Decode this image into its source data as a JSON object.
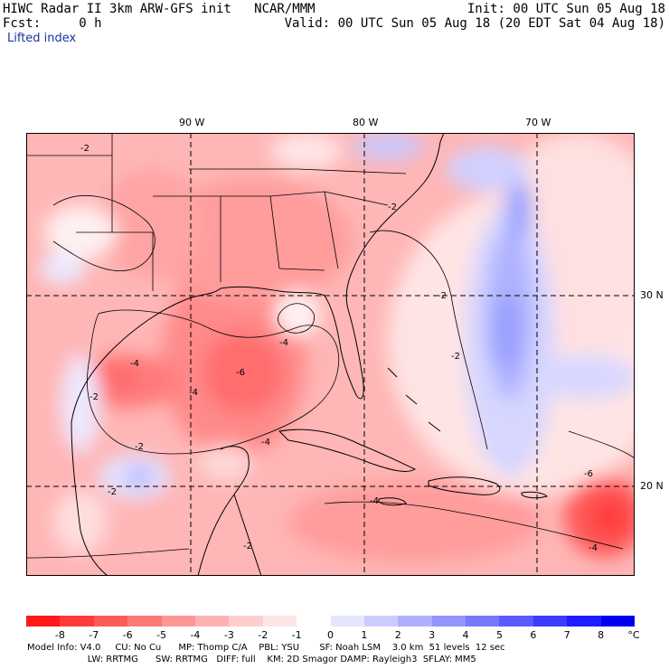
{
  "header": {
    "title": "HIWC Radar II 3km ARW-GFS init   NCAR/MMM",
    "forecast": "Fcst:     0 h",
    "init": "Init: 00 UTC Sun 05 Aug 18",
    "valid": "Valid: 00 UTC Sun 05 Aug 18 (20 EDT Sat 04 Aug 18)",
    "field": "Lifted index"
  },
  "map": {
    "lon_labels": [
      "90 W",
      "80 W",
      "70 W"
    ],
    "lat_labels": [
      "30 N",
      "20 N"
    ],
    "contour_label": "-2"
  },
  "colorbar": {
    "colors": [
      "#ff1a1a",
      "#ff3a3a",
      "#ff5a5a",
      "#ff7878",
      "#ff9696",
      "#ffb2b2",
      "#ffcece",
      "#ffe6e6",
      "#ffffff",
      "#e6e6ff",
      "#ccccff",
      "#b0b0ff",
      "#9494ff",
      "#7878ff",
      "#5a5aff",
      "#3c3cff",
      "#1e1eff",
      "#0000ee"
    ],
    "ticks": [
      "-8",
      "-7",
      "-6",
      "-5",
      "-4",
      "-3",
      "-2",
      "-1",
      "0",
      "1",
      "2",
      "3",
      "4",
      "5",
      "6",
      "7",
      "8"
    ],
    "unit": "°C"
  },
  "footer": {
    "line1": "Model Info: V4.0     CU: No Cu      MP: Thomp C/A    PBL: YSU       SF: Noah LSM    3.0 km  51 levels  12 sec",
    "line2": "                     LW: RRTMG      SW: RRTMG   DIFF: full    KM: 2D Smagor DAMP: Rayleigh3  SFLAY: MM5"
  }
}
